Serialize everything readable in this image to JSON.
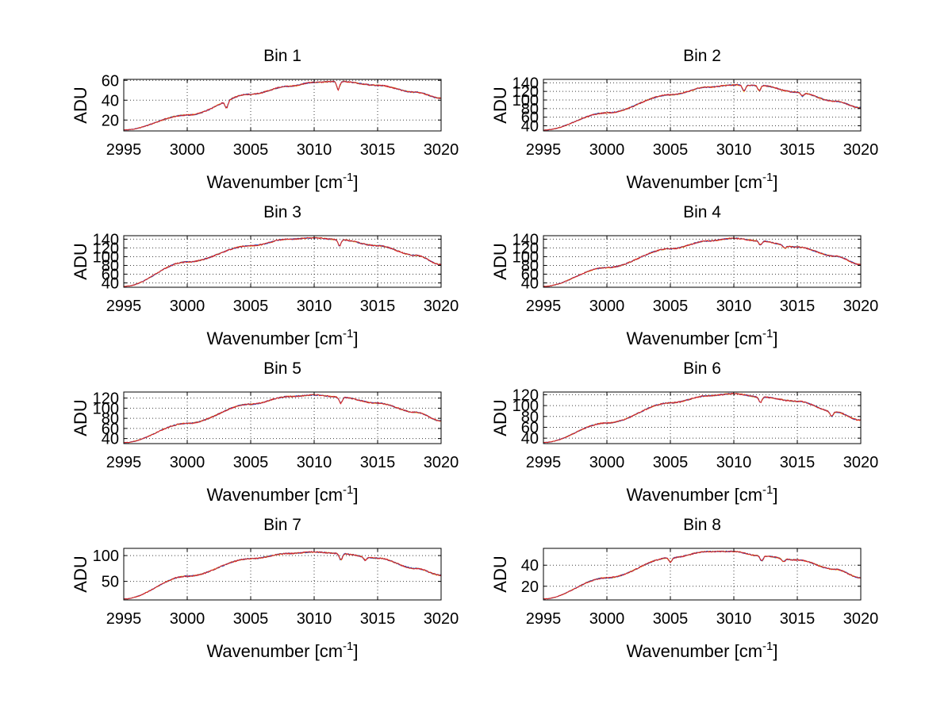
{
  "chart_data": [
    {
      "type": "line",
      "title": "Bin 1",
      "xlabel": "Wavenumber [cm",
      "xlabel_sup": "-1",
      "xlabel_suffix": "]",
      "ylabel": "ADU",
      "xlim": [
        2995,
        3020
      ],
      "ylim": [
        9,
        61
      ],
      "xticks": [
        2995,
        3000,
        3005,
        3010,
        3015,
        3020
      ],
      "yticks": [
        20,
        40,
        60
      ],
      "grid": true,
      "baseline": {
        "x": [
          2995,
          3000,
          3005,
          3008,
          3010,
          3012,
          3015,
          3018,
          3020
        ],
        "y": [
          10,
          25,
          46,
          54,
          58,
          59,
          55,
          48,
          42
        ]
      },
      "dips": [
        {
          "x": 3003.1,
          "depth": 7
        },
        {
          "x": 3011.9,
          "depth": 8
        }
      ],
      "series": [
        {
          "color": "#e8c020"
        },
        {
          "color": "#2050c8"
        },
        {
          "color": "#e02020"
        }
      ]
    },
    {
      "type": "line",
      "title": "Bin 2",
      "xlabel": "Wavenumber [cm",
      "xlabel_sup": "-1",
      "xlabel_suffix": "]",
      "ylabel": "ADU",
      "xlim": [
        2995,
        3020
      ],
      "ylim": [
        28,
        148
      ],
      "xticks": [
        2995,
        3000,
        3005,
        3010,
        3015,
        3020
      ],
      "yticks": [
        40,
        60,
        80,
        100,
        120,
        140
      ],
      "grid": true,
      "baseline": {
        "x": [
          2995,
          3000,
          3005,
          3008,
          3010,
          3012,
          3015,
          3018,
          3020
        ],
        "y": [
          30,
          70,
          112,
          130,
          135,
          134,
          118,
          97,
          82
        ]
      },
      "dips": [
        {
          "x": 3010.8,
          "depth": 14
        },
        {
          "x": 3012.0,
          "depth": 12
        },
        {
          "x": 3015.4,
          "depth": 8
        }
      ],
      "series": [
        {
          "color": "#e8c020"
        },
        {
          "color": "#2050c8"
        },
        {
          "color": "#e02020"
        }
      ]
    },
    {
      "type": "line",
      "title": "Bin 3",
      "xlabel": "Wavenumber [cm",
      "xlabel_sup": "-1",
      "xlabel_suffix": "]",
      "ylabel": "ADU",
      "xlim": [
        2995,
        3020
      ],
      "ylim": [
        30,
        148
      ],
      "xticks": [
        2995,
        3000,
        3005,
        3010,
        3015,
        3020
      ],
      "yticks": [
        40,
        60,
        80,
        100,
        120,
        140
      ],
      "grid": true,
      "baseline": {
        "x": [
          2995,
          3000,
          3005,
          3008,
          3010,
          3012,
          3015,
          3018,
          3020
        ],
        "y": [
          32,
          88,
          125,
          140,
          143,
          139,
          125,
          103,
          82
        ]
      },
      "dips": [
        {
          "x": 3012.0,
          "depth": 14
        }
      ],
      "series": [
        {
          "color": "#e8c020"
        },
        {
          "color": "#2050c8"
        },
        {
          "color": "#e02020"
        }
      ]
    },
    {
      "type": "line",
      "title": "Bin 4",
      "xlabel": "Wavenumber [cm",
      "xlabel_sup": "-1",
      "xlabel_suffix": "]",
      "ylabel": "ADU",
      "xlim": [
        2995,
        3020
      ],
      "ylim": [
        30,
        148
      ],
      "xticks": [
        2995,
        3000,
        3005,
        3010,
        3015,
        3020
      ],
      "yticks": [
        40,
        60,
        80,
        100,
        120,
        140
      ],
      "grid": true,
      "baseline": {
        "x": [
          2995,
          3000,
          3005,
          3008,
          3010,
          3012,
          3015,
          3018,
          3020
        ],
        "y": [
          32,
          75,
          118,
          136,
          142,
          136,
          122,
          101,
          82
        ]
      },
      "dips": [
        {
          "x": 3012.1,
          "depth": 9
        },
        {
          "x": 3014.0,
          "depth": 6
        }
      ],
      "series": [
        {
          "color": "#e8c020"
        },
        {
          "color": "#2050c8"
        },
        {
          "color": "#e02020"
        }
      ]
    },
    {
      "type": "line",
      "title": "Bin 5",
      "xlabel": "Wavenumber [cm",
      "xlabel_sup": "-1",
      "xlabel_suffix": "]",
      "ylabel": "ADU",
      "xlim": [
        2995,
        3020
      ],
      "ylim": [
        30,
        132
      ],
      "xticks": [
        2995,
        3000,
        3005,
        3010,
        3015,
        3020
      ],
      "yticks": [
        40,
        60,
        80,
        100,
        120
      ],
      "grid": true,
      "baseline": {
        "x": [
          2995,
          3000,
          3005,
          3008,
          3010,
          3012,
          3015,
          3018,
          3020
        ],
        "y": [
          32,
          70,
          108,
          123,
          126,
          122,
          110,
          92,
          75
        ]
      },
      "dips": [
        {
          "x": 3012.1,
          "depth": 12
        }
      ],
      "series": [
        {
          "color": "#e8c020"
        },
        {
          "color": "#2050c8"
        },
        {
          "color": "#e02020"
        }
      ]
    },
    {
      "type": "line",
      "title": "Bin 6",
      "xlabel": "Wavenumber [cm",
      "xlabel_sup": "-1",
      "xlabel_suffix": "]",
      "ylabel": "ADU",
      "xlim": [
        2995,
        3020
      ],
      "ylim": [
        30,
        125
      ],
      "xticks": [
        2995,
        3000,
        3005,
        3010,
        3015,
        3020
      ],
      "yticks": [
        40,
        60,
        80,
        100,
        120
      ],
      "grid": true,
      "baseline": {
        "x": [
          2995,
          3000,
          3005,
          3008,
          3010,
          3012,
          3015,
          3018,
          3020
        ],
        "y": [
          32,
          68,
          105,
          118,
          122,
          116,
          108,
          88,
          73
        ]
      },
      "dips": [
        {
          "x": 3012.1,
          "depth": 10
        },
        {
          "x": 3017.7,
          "depth": 8
        }
      ],
      "series": [
        {
          "color": "#e8c020"
        },
        {
          "color": "#2050c8"
        },
        {
          "color": "#e02020"
        }
      ]
    },
    {
      "type": "line",
      "title": "Bin 7",
      "xlabel": "Wavenumber [cm",
      "xlabel_sup": "-1",
      "xlabel_suffix": "]",
      "ylabel": "ADU",
      "xlim": [
        2995,
        3020
      ],
      "ylim": [
        14,
        114
      ],
      "xticks": [
        2995,
        3000,
        3005,
        3010,
        3015,
        3020
      ],
      "yticks": [
        50,
        100
      ],
      "grid": true,
      "baseline": {
        "x": [
          2995,
          3000,
          3005,
          3008,
          3010,
          3012,
          3015,
          3018,
          3020
        ],
        "y": [
          16,
          60,
          94,
          104,
          107,
          104,
          95,
          75,
          62
        ]
      },
      "dips": [
        {
          "x": 3012.1,
          "depth": 12
        },
        {
          "x": 3014.0,
          "depth": 6
        }
      ],
      "series": [
        {
          "color": "#e8c020"
        },
        {
          "color": "#2050c8"
        },
        {
          "color": "#e02020"
        }
      ]
    },
    {
      "type": "line",
      "title": "Bin 8",
      "xlabel": "Wavenumber [cm",
      "xlabel_sup": "-1",
      "xlabel_suffix": "]",
      "ylabel": "ADU",
      "xlim": [
        2995,
        3020
      ],
      "ylim": [
        7,
        56
      ],
      "xticks": [
        2995,
        3000,
        3005,
        3010,
        3015,
        3020
      ],
      "yticks": [
        20,
        40
      ],
      "grid": true,
      "baseline": {
        "x": [
          2995,
          3000,
          3005,
          3008,
          3010,
          3012,
          3015,
          3018,
          3020
        ],
        "y": [
          8,
          28,
          47,
          53,
          53,
          49,
          45,
          36,
          28
        ]
      },
      "dips": [
        {
          "x": 3005.0,
          "depth": 4
        },
        {
          "x": 3012.2,
          "depth": 5
        },
        {
          "x": 3013.9,
          "depth": 3
        }
      ],
      "series": [
        {
          "color": "#e8c020"
        },
        {
          "color": "#2050c8"
        },
        {
          "color": "#e02020"
        }
      ]
    }
  ]
}
